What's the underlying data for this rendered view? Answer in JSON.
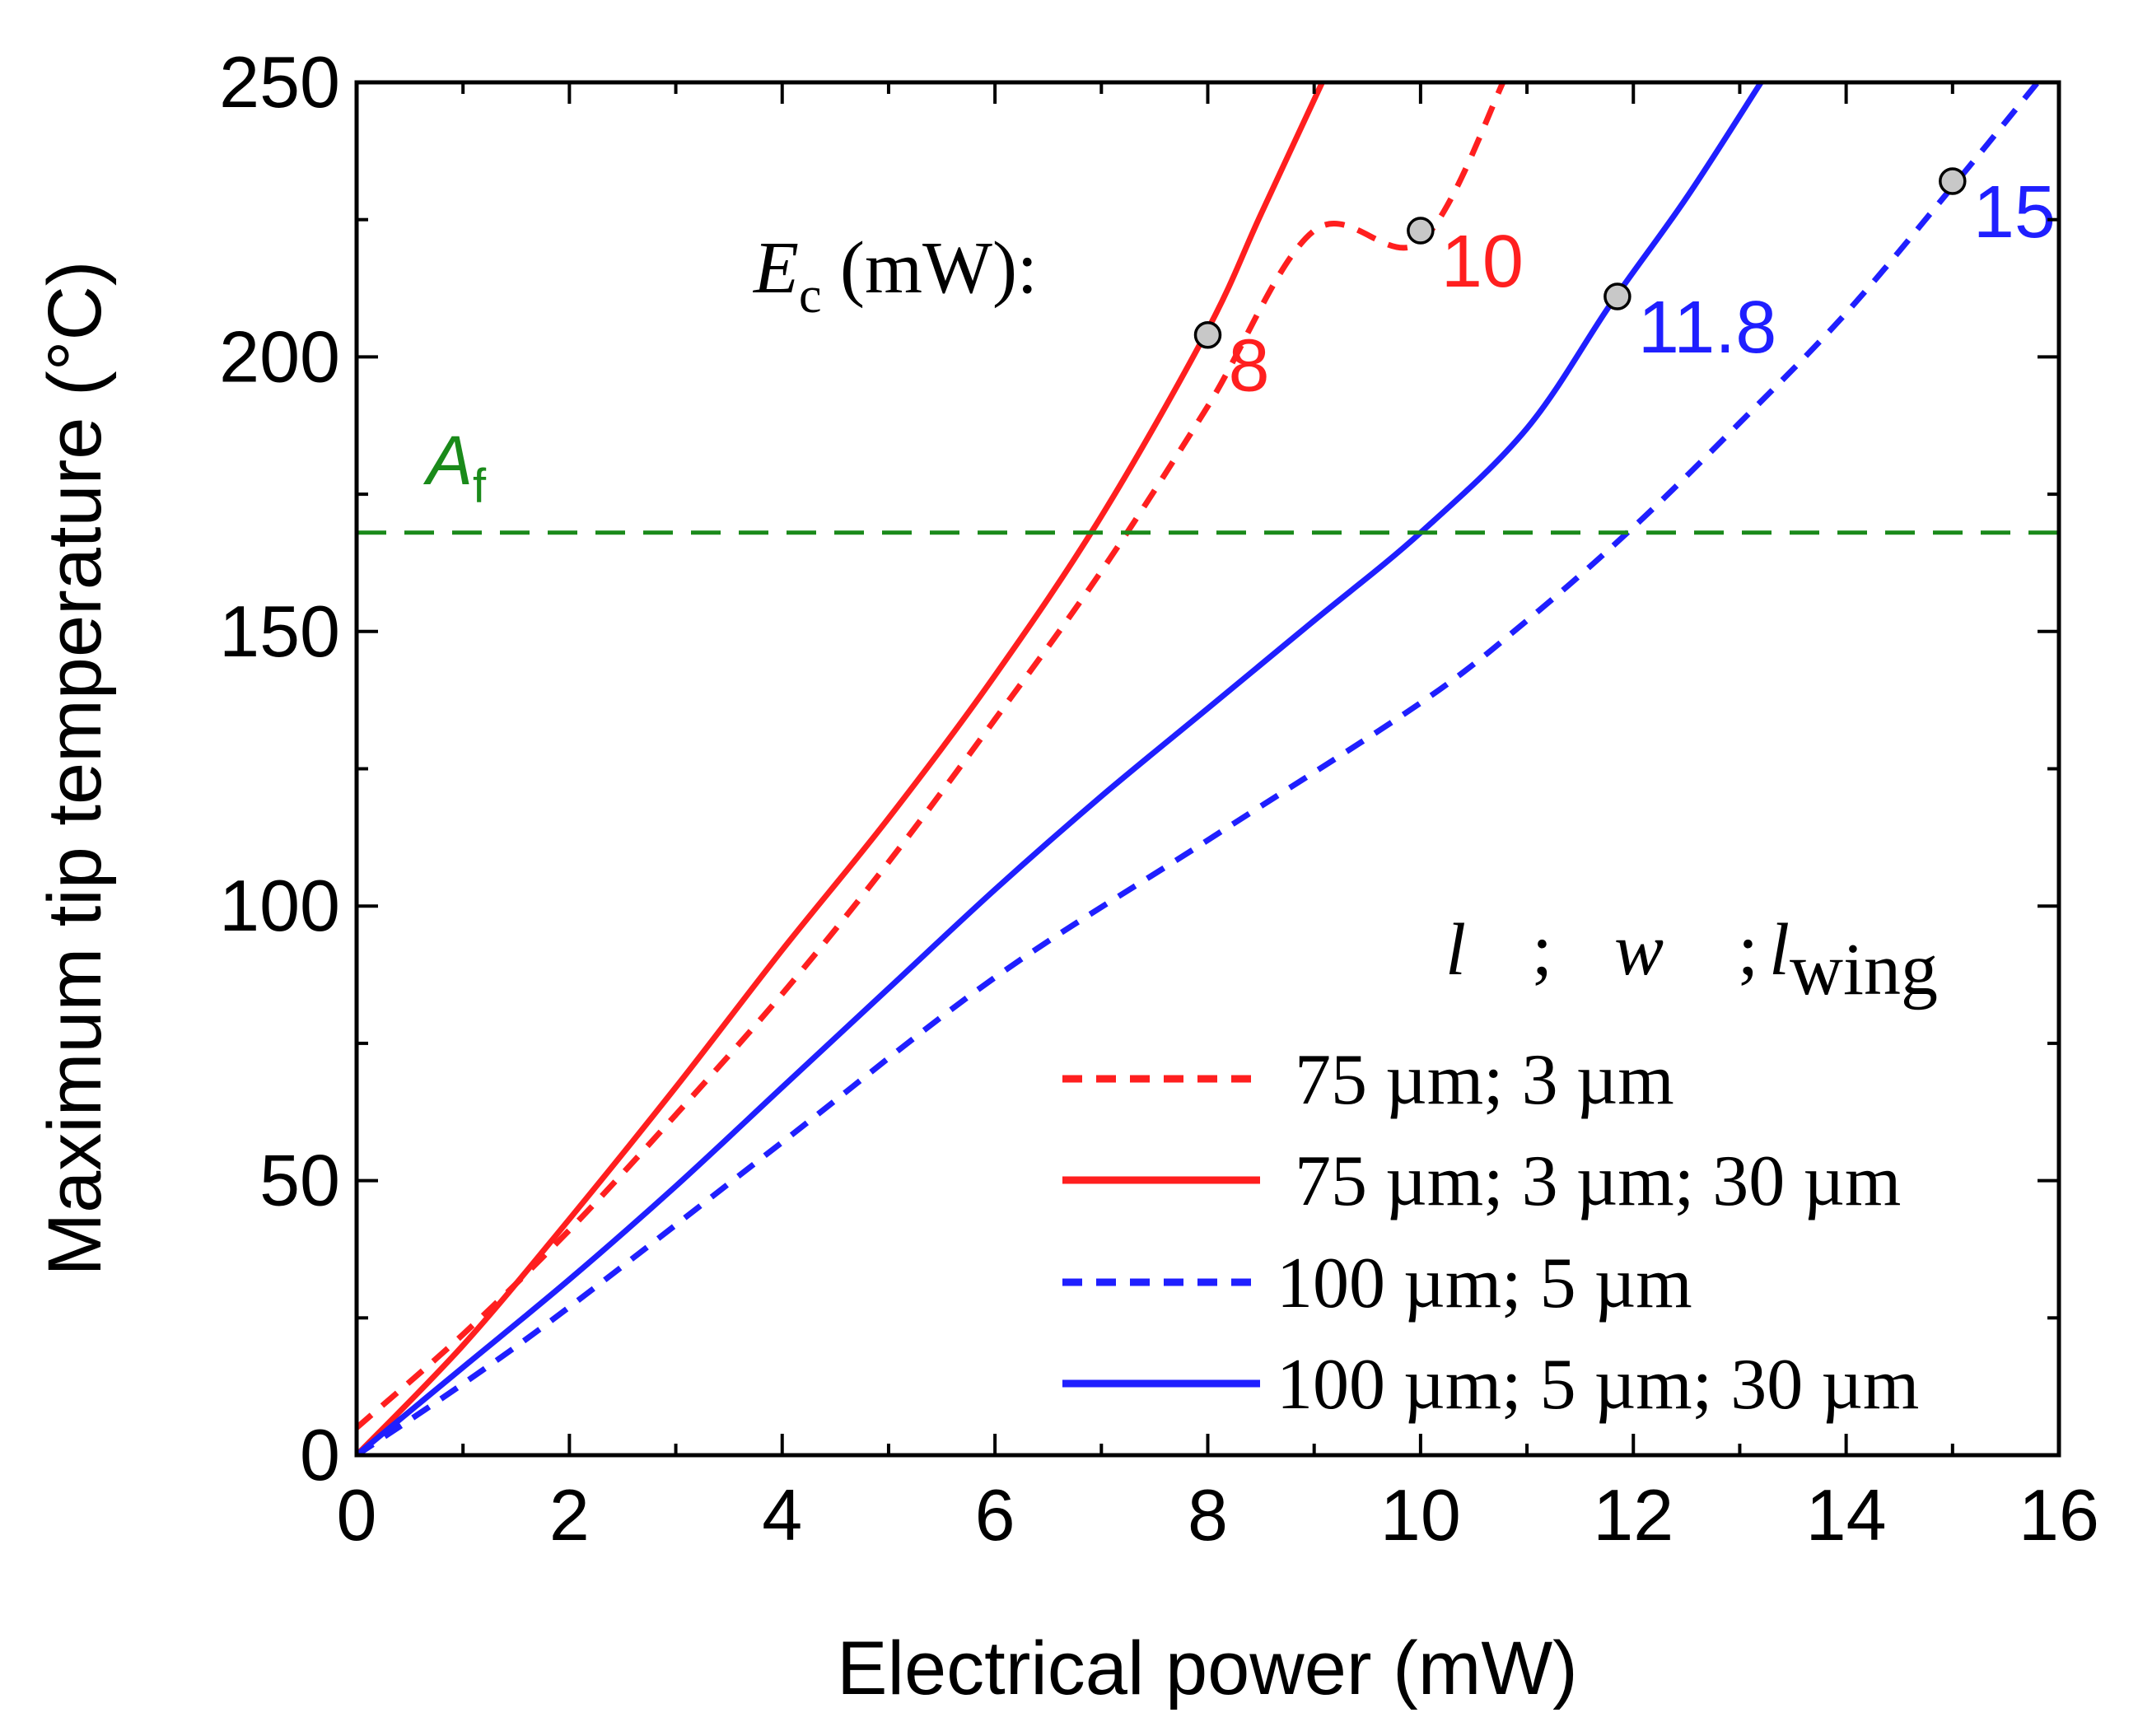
{
  "chart_data": {
    "type": "line",
    "xlabel": "Electrical power (mW)",
    "ylabel": "Maximum tip temperature (°C)",
    "xlim": [
      0,
      16
    ],
    "ylim": [
      0,
      250
    ],
    "x_ticks": [
      0,
      2,
      4,
      6,
      8,
      10,
      12,
      14,
      16
    ],
    "x_tick_labels": [
      "0",
      "2",
      "4",
      "6",
      "8",
      "10",
      "12",
      "14",
      "16"
    ],
    "y_ticks": [
      0,
      50,
      100,
      150,
      200,
      250
    ],
    "y_tick_labels": [
      "0",
      "50",
      "100",
      "150",
      "200",
      "250"
    ],
    "x_minor_step": 1,
    "y_minor_step": 25,
    "grid": false,
    "series": [
      {
        "name": "75 µm; 3 µm",
        "color": "#ff1f1f",
        "style": "dotted",
        "points": [
          [
            0,
            5
          ],
          [
            1,
            22
          ],
          [
            2,
            41
          ],
          [
            3,
            62
          ],
          [
            4,
            84
          ],
          [
            5,
            108
          ],
          [
            6,
            134
          ],
          [
            7,
            161
          ],
          [
            8,
            191
          ],
          [
            9,
            223
          ],
          [
            10,
            221
          ],
          [
            10.8,
            251
          ]
        ]
      },
      {
        "name": "75 µm; 3 µm; 30 µm",
        "color": "#ff1f1f",
        "style": "solid",
        "points": [
          [
            0,
            0
          ],
          [
            1,
            20
          ],
          [
            2,
            43
          ],
          [
            3,
            67
          ],
          [
            4,
            92
          ],
          [
            5,
            116
          ],
          [
            6,
            142
          ],
          [
            7,
            171
          ],
          [
            8,
            205
          ],
          [
            8.5,
            226
          ],
          [
            9.1,
            251
          ]
        ]
      },
      {
        "name": "100 µm; 5 µm",
        "color": "#1f1fff",
        "style": "dotted",
        "points": [
          [
            0,
            0
          ],
          [
            1,
            13
          ],
          [
            2,
            27
          ],
          [
            4,
            57
          ],
          [
            6,
            87
          ],
          [
            8,
            112
          ],
          [
            10,
            137
          ],
          [
            11,
            152
          ],
          [
            12,
            169
          ],
          [
            13,
            188
          ],
          [
            14,
            208
          ],
          [
            15,
            231
          ],
          [
            15.8,
            250
          ]
        ]
      },
      {
        "name": "100 µm; 5 µm; 30 µm",
        "color": "#1f1fff",
        "style": "solid",
        "points": [
          [
            0,
            0
          ],
          [
            1,
            16
          ],
          [
            2,
            32
          ],
          [
            3,
            49
          ],
          [
            4,
            67
          ],
          [
            5,
            85
          ],
          [
            6,
            103
          ],
          [
            7,
            120
          ],
          [
            8,
            136
          ],
          [
            9,
            152
          ],
          [
            10,
            168
          ],
          [
            11,
            187
          ],
          [
            11.8,
            210
          ],
          [
            12.5,
            229
          ],
          [
            13.2,
            250
          ]
        ]
      }
    ],
    "reference_line": {
      "label": "A",
      "label_sub": "f",
      "y": 168,
      "color": "#1a8a1a",
      "style": "dashed"
    },
    "critical_points": {
      "title": "E",
      "title_sub": "c",
      "title_suffix": " (mW):",
      "marker_color": "#c8c8c8",
      "points": [
        {
          "x": 8,
          "y": 204,
          "label": "8",
          "color": "#ff1f1f"
        },
        {
          "x": 10,
          "y": 223,
          "label": "10",
          "color": "#ff1f1f"
        },
        {
          "x": 11.85,
          "y": 211,
          "label": "11.8",
          "color": "#1f1fff"
        },
        {
          "x": 15,
          "y": 232,
          "label": "15",
          "color": "#1f1fff"
        }
      ]
    },
    "legend": {
      "position": "bottom-right",
      "header": {
        "l": "l",
        "sep1": ";",
        "w": "w",
        "sep2": ";",
        "lwing": "l",
        "lwing_sub": "wing"
      },
      "entries": [
        {
          "label": " 75 µm; 3 µm",
          "series": 0
        },
        {
          "label": " 75 µm; 3 µm; 30 µm",
          "series": 1
        },
        {
          "label": "100 µm; 5 µm",
          "series": 2
        },
        {
          "label": "100 µm; 5 µm; 30 µm",
          "series": 3
        }
      ]
    }
  }
}
